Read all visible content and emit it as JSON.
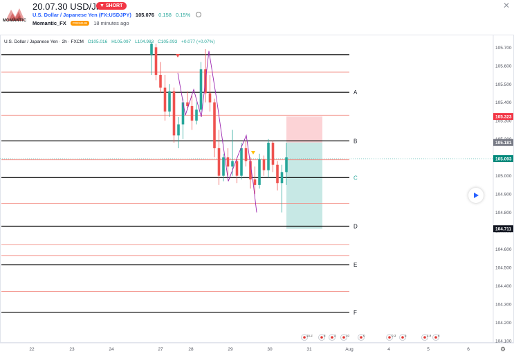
{
  "header": {
    "logo_text": "MOMANTIC",
    "title": "20.07.30 USD/JPY",
    "badge": "SHORT",
    "symbol_name": "U.S. Dollar / Japanese Yen (FX:USDJPY)",
    "price": "105.076",
    "change": "0.158",
    "change_pct": "0.15%",
    "author": "Momantic_FX",
    "author_badge": "PREMIUM",
    "published": "18 minutes ago"
  },
  "legend": {
    "name": "U.S. Dollar / Japanese Yen · 2h · FXCM",
    "open": "O105.016",
    "high": "H105.097",
    "low": "L104.983",
    "close": "C105.093",
    "change": "+0.077 (+0.07%)"
  },
  "chart_data": {
    "type": "candlestick",
    "ylim": [
      104.1,
      105.72
    ],
    "x_labels": [
      "22",
      "23",
      "24",
      "27",
      "28",
      "29",
      "30",
      "31",
      "Aug",
      "4",
      "5",
      "6"
    ],
    "y_ticks": [
      "105.700",
      "105.600",
      "105.500",
      "105.400",
      "105.300",
      "105.200",
      "105.100",
      "105.000",
      "104.900",
      "104.800",
      "104.700",
      "104.600",
      "104.500",
      "104.400",
      "104.300",
      "104.200",
      "104.100"
    ],
    "price_tags": [
      {
        "label": "105.323",
        "value": 105.323,
        "color": "#f23645"
      },
      {
        "label": "105.181",
        "value": 105.181,
        "color": "#787b86"
      },
      {
        "label": "105.093",
        "value": 105.093,
        "color": "#00897b"
      },
      {
        "label": "104.711",
        "value": 104.711,
        "color": "#131722"
      }
    ],
    "levels": [
      {
        "value": 105.66,
        "color": "#000000"
      },
      {
        "value": 105.565,
        "color": "#f28b82"
      },
      {
        "value": 105.455,
        "color": "#000000",
        "label": "A"
      },
      {
        "value": 105.33,
        "color": "#f28b82"
      },
      {
        "value": 105.19,
        "color": "#000000",
        "label": "B"
      },
      {
        "value": 105.087,
        "color": "#f28b82"
      },
      {
        "value": 104.99,
        "color": "#000000",
        "label": "C",
        "label_color": "#26a69a"
      },
      {
        "value": 104.85,
        "color": "#f28b82"
      },
      {
        "value": 104.725,
        "color": "#000000",
        "label": "D"
      },
      {
        "value": 104.625,
        "color": "#f28b82"
      },
      {
        "value": 104.565,
        "color": "#f28b82"
      },
      {
        "value": 104.515,
        "color": "#000000",
        "label": "E"
      },
      {
        "value": 104.37,
        "color": "#f28b82"
      },
      {
        "value": 104.255,
        "color": "#000000",
        "label": "F"
      }
    ],
    "position": {
      "entry": 105.181,
      "stop": 105.323,
      "target": 104.711
    },
    "candles": [
      [
        105.66,
        105.73,
        105.55,
        105.72
      ],
      [
        105.7,
        105.72,
        105.52,
        105.55
      ],
      [
        105.55,
        105.62,
        105.45,
        105.48
      ],
      [
        105.48,
        105.55,
        105.3,
        105.35
      ],
      [
        105.35,
        105.5,
        105.32,
        105.46
      ],
      [
        105.46,
        105.48,
        105.18,
        105.22
      ],
      [
        105.22,
        105.32,
        105.15,
        105.28
      ],
      [
        105.28,
        105.42,
        105.2,
        105.4
      ],
      [
        105.4,
        105.46,
        105.36,
        105.38
      ],
      [
        105.38,
        105.44,
        105.25,
        105.3
      ],
      [
        105.3,
        105.4,
        105.28,
        105.36
      ],
      [
        105.36,
        105.62,
        105.35,
        105.58
      ],
      [
        105.58,
        105.69,
        105.4,
        105.45
      ],
      [
        105.45,
        105.55,
        105.35,
        105.4
      ],
      [
        105.4,
        105.42,
        105.1,
        105.15
      ],
      [
        105.15,
        105.25,
        104.95,
        105.0
      ],
      [
        105.0,
        105.12,
        104.97,
        105.1
      ],
      [
        105.1,
        105.15,
        105.0,
        105.05
      ],
      [
        105.05,
        105.25,
        105.0,
        105.08
      ],
      [
        105.08,
        105.1,
        104.96,
        105.0
      ],
      [
        105.0,
        105.18,
        104.98,
        105.15
      ],
      [
        105.15,
        105.19,
        105.05,
        105.08
      ],
      [
        105.08,
        105.1,
        104.93,
        104.98
      ],
      [
        104.98,
        105.05,
        104.9,
        104.95
      ],
      [
        104.95,
        105.12,
        104.93,
        105.09
      ],
      [
        105.09,
        105.11,
        105.0,
        105.03
      ],
      [
        105.03,
        105.2,
        104.99,
        105.18
      ],
      [
        105.18,
        105.19,
        105.02,
        105.06
      ],
      [
        105.06,
        105.08,
        104.92,
        104.96
      ],
      [
        104.96,
        105.06,
        104.8,
        105.02
      ],
      [
        105.02,
        105.18,
        104.95,
        105.1
      ]
    ],
    "event_flags": [
      "15.2",
      "8",
      "3",
      "10",
      "0",
      "0.3",
      "5",
      "2.9",
      "8"
    ]
  }
}
